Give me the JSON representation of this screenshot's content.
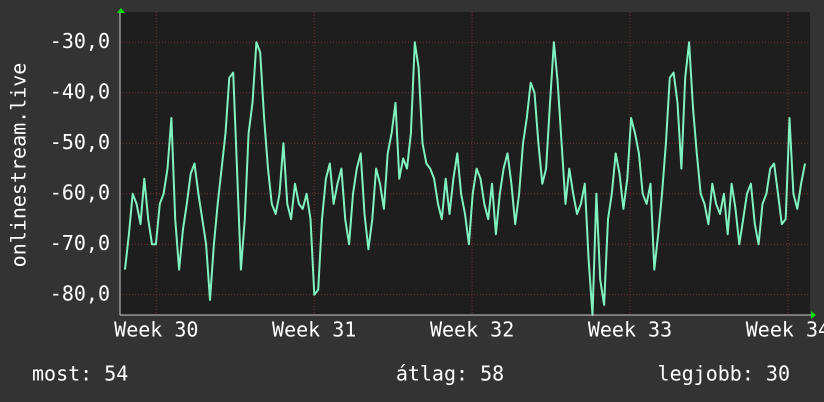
{
  "chart_data": {
    "type": "line",
    "ylabel": "onlinestream.live",
    "ylim": [
      -84,
      -24
    ],
    "yticks": [
      {
        "value": -30,
        "label": "-30,0"
      },
      {
        "value": -40,
        "label": "-40,0"
      },
      {
        "value": -50,
        "label": "-50,0"
      },
      {
        "value": -60,
        "label": "-60,0"
      },
      {
        "value": -70,
        "label": "-70,0"
      },
      {
        "value": -80,
        "label": "-80,0"
      }
    ],
    "xlim": [
      29.77,
      34.14
    ],
    "xticks": [
      {
        "value": 30,
        "label": "Week 30"
      },
      {
        "value": 31,
        "label": "Week 31"
      },
      {
        "value": 32,
        "label": "Week 32"
      },
      {
        "value": 33,
        "label": "Week 33"
      },
      {
        "value": 34,
        "label": "Week 34"
      }
    ],
    "grid": true,
    "series": [
      {
        "color": "#80f2c0",
        "values": [
          -75,
          -68,
          -60,
          -62,
          -66,
          -57,
          -65,
          -70,
          -70,
          -62,
          -60,
          -55,
          -45,
          -65,
          -75,
          -67,
          -62,
          -56,
          -54,
          -60,
          -65,
          -70,
          -81,
          -70,
          -62,
          -55,
          -48,
          -37,
          -36,
          -55,
          -75,
          -65,
          -48,
          -42,
          -30,
          -32,
          -45,
          -55,
          -62,
          -64,
          -60,
          -50,
          -62,
          -65,
          -58,
          -62,
          -63,
          -60,
          -65,
          -80,
          -79,
          -65,
          -57,
          -54,
          -62,
          -58,
          -55,
          -65,
          -70,
          -60,
          -55,
          -52,
          -64,
          -71,
          -65,
          -55,
          -58,
          -63,
          -52,
          -48,
          -42,
          -57,
          -53,
          -55,
          -48,
          -30,
          -35,
          -50,
          -54,
          -55,
          -57,
          -62,
          -65,
          -57,
          -64,
          -57,
          -52,
          -60,
          -64,
          -70,
          -60,
          -55,
          -57,
          -62,
          -65,
          -58,
          -68,
          -60,
          -55,
          -52,
          -58,
          -66,
          -60,
          -50,
          -45,
          -38,
          -40,
          -50,
          -58,
          -55,
          -42,
          -30,
          -38,
          -50,
          -62,
          -55,
          -60,
          -64,
          -62,
          -58,
          -73,
          -84,
          -60,
          -77,
          -82,
          -65,
          -60,
          -52,
          -56,
          -63,
          -57,
          -45,
          -48,
          -52,
          -60,
          -62,
          -58,
          -75,
          -68,
          -60,
          -50,
          -37,
          -36,
          -42,
          -55,
          -37,
          -30,
          -43,
          -52,
          -60,
          -62,
          -66,
          -58,
          -62,
          -64,
          -60,
          -68,
          -58,
          -63,
          -70,
          -65,
          -60,
          -58,
          -66,
          -70,
          -62,
          -60,
          -55,
          -54,
          -60,
          -66,
          -65,
          -45,
          -60,
          -63,
          -58,
          -54
        ]
      }
    ],
    "footer": {
      "current": "most: 54",
      "average": "átlag: 58",
      "best": "legjobb: 30"
    }
  }
}
